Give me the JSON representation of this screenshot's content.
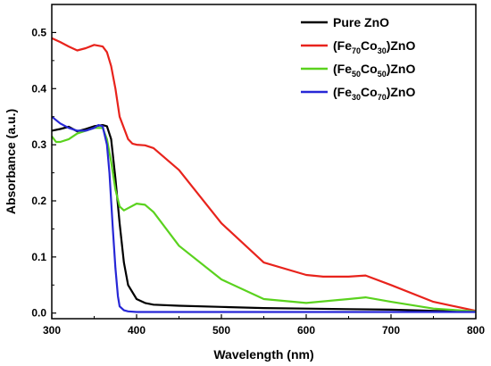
{
  "chart_data": {
    "type": "line",
    "xlabel": "Wavelength (nm)",
    "ylabel": "Absorbance (a.u.)",
    "xlim": [
      300,
      800
    ],
    "ylim": [
      -0.01,
      0.55
    ],
    "xticks": [
      "300",
      "400",
      "500",
      "600",
      "700",
      "800"
    ],
    "yticks": [
      "0.0",
      "0.1",
      "0.2",
      "0.3",
      "0.4",
      "0.5"
    ],
    "grid": false,
    "legend_position": "top-right",
    "series": [
      {
        "name": "Pure ZnO",
        "legend": {
          "parts": [
            {
              "text": "Pure ZnO",
              "sub": false
            }
          ]
        },
        "color": "#000000",
        "x": [
          300,
          310,
          320,
          330,
          340,
          350,
          360,
          365,
          370,
          375,
          380,
          385,
          390,
          400,
          410,
          420,
          450,
          500,
          550,
          600,
          650,
          700,
          750,
          800
        ],
        "y": [
          0.325,
          0.328,
          0.332,
          0.324,
          0.328,
          0.333,
          0.335,
          0.333,
          0.31,
          0.24,
          0.16,
          0.09,
          0.05,
          0.025,
          0.018,
          0.015,
          0.013,
          0.011,
          0.009,
          0.008,
          0.007,
          0.006,
          0.004,
          0.003
        ]
      },
      {
        "name": "(Fe70Co30)ZnO",
        "legend": {
          "parts": [
            {
              "text": "(Fe",
              "sub": false
            },
            {
              "text": "70",
              "sub": true
            },
            {
              "text": "Co",
              "sub": false
            },
            {
              "text": "30",
              "sub": true
            },
            {
              "text": ")ZnO",
              "sub": false
            }
          ]
        },
        "color": "#e8231c",
        "x": [
          300,
          310,
          320,
          330,
          340,
          350,
          360,
          365,
          370,
          375,
          380,
          390,
          395,
          400,
          410,
          420,
          450,
          500,
          550,
          600,
          620,
          650,
          670,
          700,
          750,
          800
        ],
        "y": [
          0.49,
          0.483,
          0.475,
          0.468,
          0.472,
          0.478,
          0.475,
          0.465,
          0.44,
          0.4,
          0.35,
          0.31,
          0.302,
          0.3,
          0.299,
          0.294,
          0.255,
          0.16,
          0.09,
          0.068,
          0.065,
          0.065,
          0.067,
          0.05,
          0.02,
          0.004
        ]
      },
      {
        "name": "(Fe50Co50)ZnO",
        "legend": {
          "parts": [
            {
              "text": "(Fe",
              "sub": false
            },
            {
              "text": "50",
              "sub": true
            },
            {
              "text": "Co",
              "sub": false
            },
            {
              "text": "50",
              "sub": true
            },
            {
              "text": ")ZnO",
              "sub": false
            }
          ]
        },
        "color": "#5ad21e",
        "x": [
          300,
          305,
          310,
          320,
          330,
          340,
          350,
          360,
          365,
          370,
          375,
          380,
          385,
          390,
          400,
          410,
          420,
          450,
          500,
          550,
          600,
          650,
          670,
          700,
          750,
          800
        ],
        "y": [
          0.315,
          0.305,
          0.305,
          0.31,
          0.32,
          0.325,
          0.33,
          0.33,
          0.31,
          0.27,
          0.22,
          0.19,
          0.183,
          0.187,
          0.195,
          0.193,
          0.18,
          0.12,
          0.06,
          0.025,
          0.018,
          0.025,
          0.028,
          0.02,
          0.008,
          0.003
        ]
      },
      {
        "name": "(Fe30Co70)ZnO",
        "legend": {
          "parts": [
            {
              "text": "(Fe",
              "sub": false
            },
            {
              "text": "30",
              "sub": true
            },
            {
              "text": "Co",
              "sub": false
            },
            {
              "text": "70",
              "sub": true
            },
            {
              "text": ")ZnO",
              "sub": false
            }
          ]
        },
        "color": "#2727d6",
        "x": [
          300,
          310,
          320,
          330,
          340,
          350,
          355,
          360,
          365,
          368,
          370,
          372,
          375,
          378,
          380,
          385,
          390,
          400,
          500,
          600,
          700,
          800
        ],
        "y": [
          0.35,
          0.338,
          0.33,
          0.325,
          0.325,
          0.33,
          0.335,
          0.333,
          0.3,
          0.25,
          0.2,
          0.15,
          0.08,
          0.03,
          0.012,
          0.005,
          0.003,
          0.002,
          0.002,
          0.002,
          0.002,
          0.002
        ]
      }
    ]
  }
}
